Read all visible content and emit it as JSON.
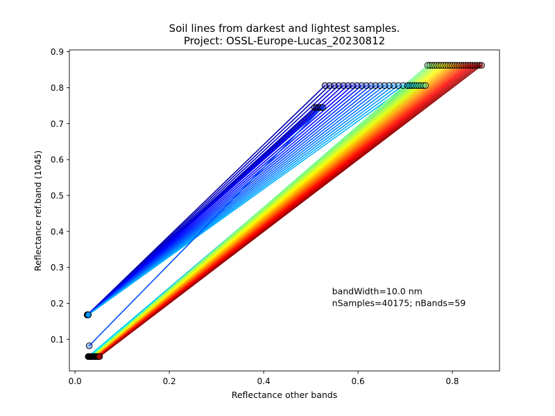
{
  "chart_data": {
    "type": "line",
    "title": "Soil lines from darkest and lightest samples.",
    "subtitle": "Project: OSSL-Europe-Lucas_20230812",
    "xlabel": "Reflectance other bands",
    "ylabel": "Reflectance ref.band (1045)",
    "xlim": [
      -0.012,
      0.9
    ],
    "ylim": [
      0.012,
      0.905
    ],
    "xticks": [
      0.0,
      0.2,
      0.4,
      0.6,
      0.8
    ],
    "xtick_labels": [
      "0.0",
      "0.2",
      "0.4",
      "0.6",
      "0.8"
    ],
    "yticks": [
      0.1,
      0.2,
      0.3,
      0.4,
      0.5,
      0.6,
      0.7,
      0.8,
      0.9
    ],
    "ytick_labels": [
      "0.1",
      "0.2",
      "0.3",
      "0.4",
      "0.5",
      "0.6",
      "0.7",
      "0.8",
      "0.9"
    ],
    "grid": false,
    "colormap": "jet",
    "annotation": {
      "line1": "bandWidth=10.0 nm",
      "line2": "nSamples=40175; nBands=59",
      "x": 0.545,
      "y": 0.225
    },
    "groups": [
      {
        "count": 5,
        "dark": {
          "x": [
            0.026,
            0.026
          ],
          "y": 0.168
        },
        "light": {
          "x": [
            0.508,
            0.525
          ],
          "y": 0.745
        },
        "color_range": [
          0.0,
          0.12
        ]
      },
      {
        "count": 19,
        "dark": {
          "x": [
            0.026,
            0.028
          ],
          "y": 0.168
        },
        "light": {
          "x": [
            0.53,
            0.705
          ],
          "y": 0.806
        },
        "color_range": [
          0.04,
          0.3
        ]
      },
      {
        "count": 1,
        "dark": {
          "x": [
            0.03,
            0.03
          ],
          "y": 0.082
        },
        "light": {
          "x": [
            0.525,
            0.525
          ],
          "y": 0.745
        },
        "color_range": [
          0.2,
          0.2
        ]
      },
      {
        "count": 34,
        "dark": {
          "x": [
            0.028,
            0.052
          ],
          "y": 0.052
        },
        "light": {
          "x": [
            0.705,
            0.862
          ],
          "y": 0.806,
          "y_end": 0.862,
          "y_switch_x": 0.745
        },
        "color_range": [
          0.3,
          0.98
        ]
      }
    ]
  }
}
